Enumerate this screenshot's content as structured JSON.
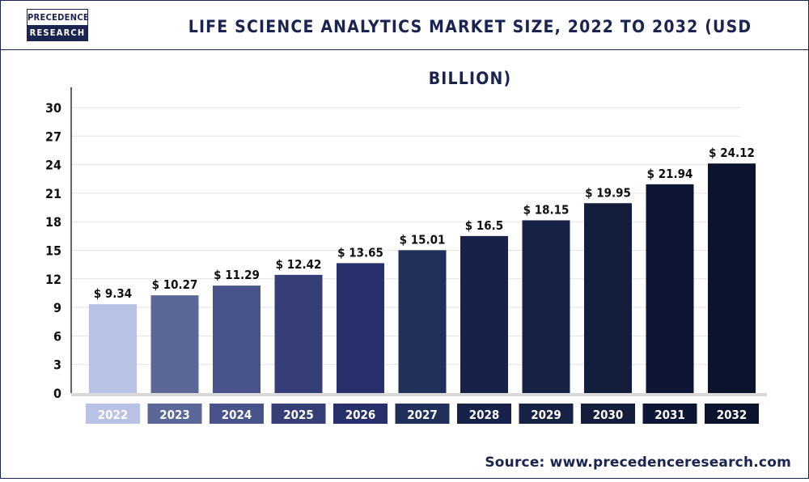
{
  "logo": {
    "line1": "PRECEDENCE",
    "line2": "RESEARCH"
  },
  "title": "LIFE SCIENCE ANALYTICS MARKET SIZE, 2022 TO 2032 (USD BILLION)",
  "source": "Source: www.precedenceresearch.com",
  "colors": {
    "brand": "#1b2450",
    "bars": [
      "#b8c2e4",
      "#5a6797",
      "#48538c",
      "#363e77",
      "#27306a",
      "#20305a",
      "#17214a",
      "#162143",
      "#131d3c",
      "#0e1636",
      "#0b132e"
    ]
  },
  "chart_data": {
    "type": "bar",
    "title": "LIFE SCIENCE ANALYTICS MARKET SIZE, 2022 TO 2032 (USD BILLION)",
    "categories": [
      "2022",
      "2023",
      "2024",
      "2025",
      "2026",
      "2027",
      "2028",
      "2029",
      "2030",
      "2031",
      "2032"
    ],
    "values": [
      9.34,
      10.27,
      11.29,
      12.42,
      13.65,
      15.01,
      16.5,
      18.15,
      19.95,
      21.94,
      24.12
    ],
    "value_labels": [
      "$ 9.34",
      "$ 10.27",
      "$ 11.29",
      "$ 12.42",
      "$ 13.65",
      "$ 15.01",
      "$ 16.5",
      "$ 18.15",
      "$ 19.95",
      "$ 21.94",
      "$ 24.12"
    ],
    "yticks": [
      "0",
      "3",
      "6",
      "9",
      "12",
      "15",
      "18",
      "21",
      "24",
      "27",
      "30"
    ],
    "ylim": [
      0,
      30
    ],
    "grid": true,
    "legend": "none"
  }
}
